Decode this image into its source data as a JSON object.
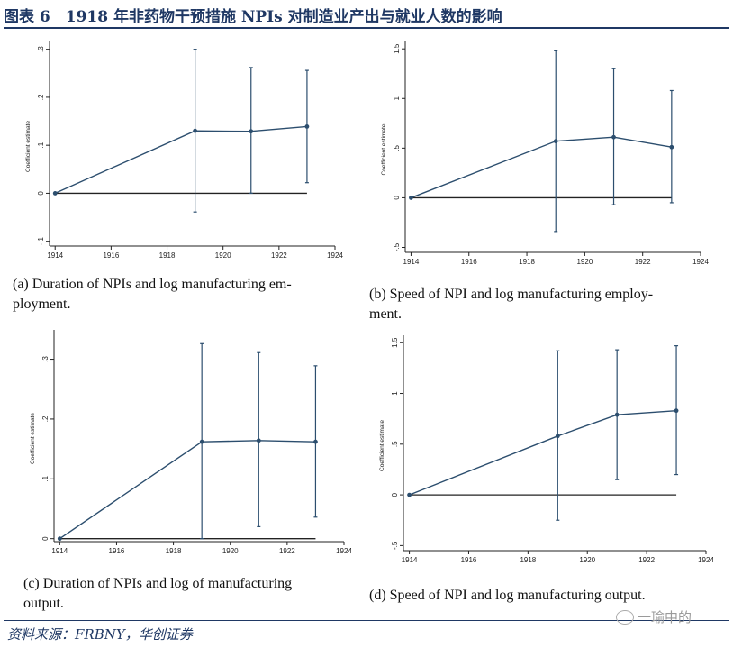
{
  "header": {
    "title": "图表 6　1918 年非药物干预措施 NPIs 对制造业产出与就业人数的影响"
  },
  "footer": {
    "source": "资料来源：FRBNY，华创证券",
    "watermark": "一瑜中的"
  },
  "colors": {
    "series": "#2c4e6e",
    "axis": "#222222",
    "zero_line": "#222222",
    "title": "#1f3864"
  },
  "chart_data": [
    {
      "id": "a",
      "type": "line",
      "caption_lines": [
        "(a) Duration of NPIs and log manufacturing em-",
        "ployment."
      ],
      "ylabel": "Coefficient estimate",
      "x": [
        1914,
        1919,
        1921,
        1923
      ],
      "y": [
        0,
        0.13,
        0.129,
        0.139
      ],
      "ci_low": [
        0,
        -0.039,
        0,
        0.022
      ],
      "ci_high": [
        0,
        0.3,
        0.262,
        0.256
      ],
      "xlim": [
        1913.8,
        1924
      ],
      "xticks": [
        1914,
        1916,
        1918,
        1920,
        1922,
        1924
      ],
      "ylim": [
        -0.11,
        0.305
      ],
      "yticks": [
        -0.1,
        0,
        0.1,
        0.2,
        0.3
      ],
      "ytick_labels": [
        "-.1",
        "0",
        ".1",
        ".2",
        ".3"
      ],
      "zero_line_to": 1923
    },
    {
      "id": "b",
      "type": "line",
      "caption_lines": [
        "(b) Speed of NPI and log manufacturing employ-",
        "ment."
      ],
      "ylabel": "Coefficient estimate",
      "x": [
        1914,
        1919,
        1921,
        1923
      ],
      "y": [
        0,
        0.57,
        0.61,
        0.51
      ],
      "ci_low": [
        0,
        -0.34,
        -0.07,
        -0.05
      ],
      "ci_high": [
        0,
        1.48,
        1.3,
        1.08
      ],
      "xlim": [
        1913.8,
        1924
      ],
      "xticks": [
        1914,
        1916,
        1918,
        1920,
        1922,
        1924
      ],
      "ylim": [
        -0.55,
        1.52
      ],
      "yticks": [
        -0.5,
        0,
        0.5,
        1,
        1.5
      ],
      "ytick_labels": [
        "-.5",
        "0",
        ".5",
        "1",
        "1.5"
      ],
      "zero_line_to": 1923
    },
    {
      "id": "c",
      "type": "line",
      "caption_lines": [
        "(c) Duration of NPIs and log of manufacturing",
        "output."
      ],
      "ylabel": "Coefficient estimate",
      "x": [
        1914,
        1919,
        1921,
        1923
      ],
      "y": [
        0,
        0.162,
        0.164,
        0.162
      ],
      "ci_low": [
        0,
        0,
        0.02,
        0.036
      ],
      "ci_high": [
        0,
        0.326,
        0.311,
        0.289
      ],
      "xlim": [
        1913.8,
        1924
      ],
      "xticks": [
        1914,
        1916,
        1918,
        1920,
        1922,
        1924
      ],
      "ylim": [
        -0.005,
        0.34
      ],
      "yticks": [
        0,
        0.1,
        0.2,
        0.3
      ],
      "ytick_labels": [
        "0",
        ".1",
        ".2",
        ".3"
      ],
      "zero_line_to": 1923
    },
    {
      "id": "d",
      "type": "line",
      "caption_lines": [
        "(d) Speed of NPI and log manufacturing output."
      ],
      "ylabel": "Coefficient estimate",
      "x": [
        1914,
        1919,
        1921,
        1923
      ],
      "y": [
        0,
        0.58,
        0.79,
        0.83
      ],
      "ci_low": [
        0,
        -0.25,
        0.15,
        0.2
      ],
      "ci_high": [
        0,
        1.42,
        1.43,
        1.47
      ],
      "xlim": [
        1913.8,
        1924
      ],
      "xticks": [
        1914,
        1916,
        1918,
        1920,
        1922,
        1924
      ],
      "ylim": [
        -0.55,
        1.52
      ],
      "yticks": [
        -0.5,
        0,
        0.5,
        1,
        1.5
      ],
      "ytick_labels": [
        "-.5",
        "0",
        ".5",
        "1",
        "1.5"
      ],
      "zero_line_to": 1923
    }
  ]
}
